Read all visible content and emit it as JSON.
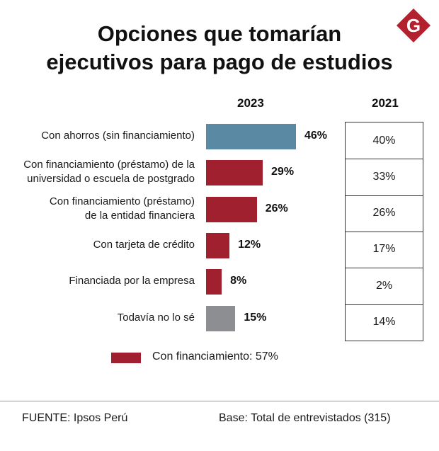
{
  "title_line1": "Opciones que tomarían",
  "title_line2": "ejecutivos para pago de estudios",
  "logo_letter": "G",
  "colors": {
    "teal": "#5a8aa3",
    "red": "#a0202f",
    "gray": "#8d8e91",
    "logo": "#b3202e"
  },
  "chart_data": {
    "type": "bar",
    "orientation": "horizontal",
    "title": "Opciones que tomarían ejecutivos para pago de estudios",
    "series_2023_label": "2023",
    "series_2021_label": "2021",
    "categories": [
      [
        "Con ahorros (sin financiamiento)"
      ],
      [
        "Con financiamiento (préstamo) de la",
        "universidad o escuela de postgrado"
      ],
      [
        "Con financiamiento (préstamo)",
        "de la entidad financiera"
      ],
      [
        "Con tarjeta de crédito"
      ],
      [
        "Financiada por la empresa"
      ],
      [
        "Todavía no lo sé"
      ]
    ],
    "values_2023": [
      46,
      29,
      26,
      12,
      8,
      15
    ],
    "labels_2023": [
      "46%",
      "29%",
      "26%",
      "12%",
      "8%",
      "15%"
    ],
    "bar_colors": [
      "teal",
      "red",
      "red",
      "red",
      "red",
      "gray"
    ],
    "values_2021": [
      40,
      33,
      26,
      17,
      2,
      14
    ],
    "labels_2021": [
      "40%",
      "33%",
      "26%",
      "17%",
      "2%",
      "14%"
    ],
    "legend": "Con financiamiento: 57%"
  },
  "footer": {
    "source": "FUENTE: Ipsos Perú",
    "base": "Base: Total de entrevistados (315)"
  }
}
